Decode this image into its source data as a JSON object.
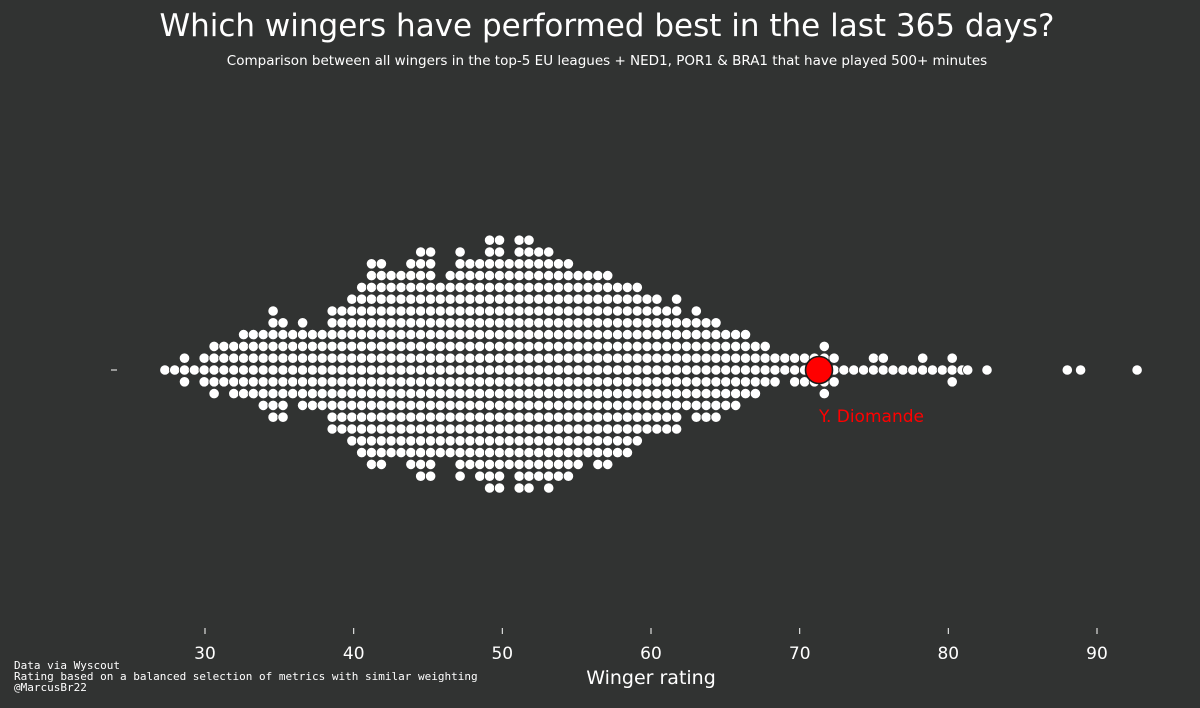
{
  "chart_data": {
    "type": "scatter",
    "style": "beeswarm",
    "title": "Which wingers have performed best in the last 365 days?",
    "subtitle": "Comparison between all wingers in the top-5 EU leagues + NED1, POR1 & BRA1 that have played 500+ minutes",
    "xlabel": "Winger rating",
    "xlim": [
      23.5,
      93.5
    ],
    "xticks": [
      30,
      40,
      50,
      60,
      70,
      80,
      90
    ],
    "grid": false,
    "column_counts": {
      "x_start": 27.3,
      "x_step": 0.662,
      "counts": [
        1,
        1,
        3,
        1,
        3,
        5,
        4,
        5,
        6,
        6,
        7,
        10,
        9,
        6,
        8,
        7,
        7,
        11,
        11,
        13,
        15,
        18,
        18,
        16,
        16,
        18,
        20,
        20,
        15,
        16,
        20,
        18,
        19,
        22,
        22,
        18,
        22,
        22,
        20,
        21,
        19,
        19,
        17,
        16,
        17,
        17,
        15,
        15,
        14,
        12,
        12,
        11,
        12,
        8,
        10,
        9,
        9,
        7,
        7,
        6,
        5,
        4,
        3,
        2,
        3,
        3,
        3,
        5,
        3,
        1,
        1,
        1,
        2,
        2,
        1,
        1,
        1,
        2,
        1,
        1,
        3,
        1
      ]
    },
    "outlier_values": [
      81.3,
      82.6,
      88.0,
      88.9,
      92.7
    ],
    "marker_colors": {
      "default": "#ffffff",
      "highlight": "#ff0000",
      "background": "#313332"
    },
    "highlight": {
      "name": "Y. Diomande",
      "value": 71.3
    }
  },
  "footer": {
    "line1": "Data via Wyscout",
    "line2": "Rating based on a balanced selection of metrics with similar weighting",
    "line3": "@MarcusBr22"
  }
}
